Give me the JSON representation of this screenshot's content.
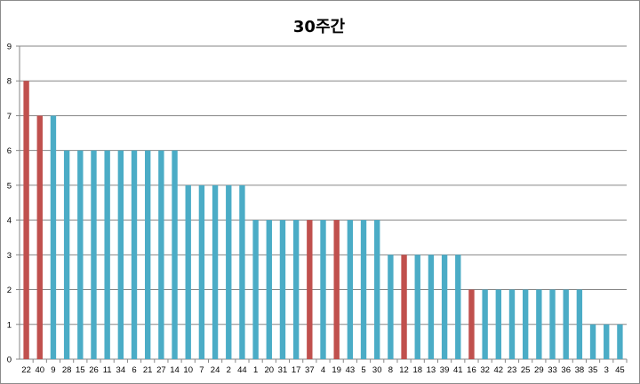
{
  "chart_data": {
    "type": "bar",
    "title": "30주간",
    "xlabel": "",
    "ylabel": "",
    "ylim": [
      0,
      9
    ],
    "yticks": [
      0,
      1,
      2,
      3,
      4,
      5,
      6,
      7,
      8,
      9
    ],
    "grid": true,
    "categories": [
      "22",
      "40",
      "9",
      "28",
      "15",
      "26",
      "11",
      "34",
      "6",
      "21",
      "27",
      "14",
      "10",
      "7",
      "24",
      "2",
      "44",
      "1",
      "20",
      "31",
      "17",
      "37",
      "4",
      "19",
      "43",
      "5",
      "30",
      "8",
      "12",
      "18",
      "13",
      "39",
      "41",
      "16",
      "32",
      "42",
      "23",
      "25",
      "29",
      "33",
      "36",
      "38",
      "35",
      "3",
      "45"
    ],
    "values": [
      8,
      7,
      7,
      6,
      6,
      6,
      6,
      6,
      6,
      6,
      6,
      6,
      5,
      5,
      5,
      5,
      5,
      4,
      4,
      4,
      4,
      4,
      4,
      4,
      4,
      4,
      4,
      3,
      3,
      3,
      3,
      3,
      3,
      2,
      2,
      2,
      2,
      2,
      2,
      2,
      2,
      2,
      1,
      1,
      1
    ],
    "highlighted": [
      "22",
      "40",
      "37",
      "19",
      "12",
      "16"
    ],
    "colors": {
      "bar": "#4bacc6",
      "highlight": "#c0504d",
      "grid": "#868686"
    }
  }
}
